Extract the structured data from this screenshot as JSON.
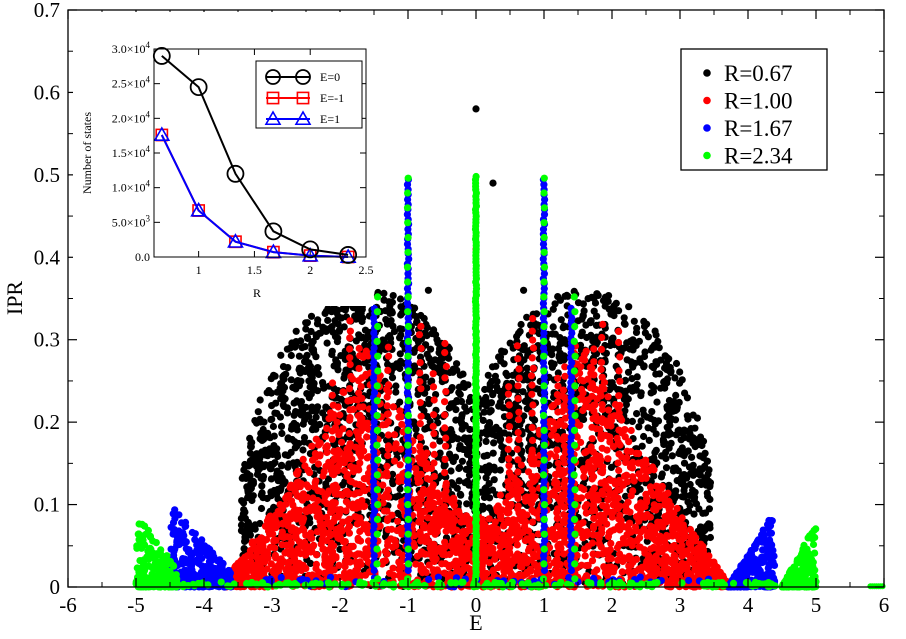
{
  "chart_data": [
    {
      "type": "scatter",
      "xlabel": "E",
      "ylabel": "IPR",
      "xlim": [
        -6,
        6
      ],
      "ylim": [
        0,
        0.7
      ],
      "xticks": [
        -6,
        -5,
        -4,
        -3,
        -2,
        -1,
        0,
        1,
        2,
        3,
        4,
        5,
        6
      ],
      "yticks": [
        0,
        0.1,
        0.2,
        0.3,
        0.4,
        0.5,
        0.6,
        0.7
      ],
      "xtick_labels": [
        "-6",
        "-5",
        "-4",
        "-3",
        "-2",
        "-1",
        "0",
        "1",
        "2",
        "3",
        "4",
        "5",
        "6"
      ],
      "ytick_labels": [
        "0",
        "0.1",
        "0.2",
        "0.3",
        "0.4",
        "0.5",
        "0.6",
        "0.7"
      ],
      "legend_position": "top-right",
      "series": [
        {
          "name": "R=0.67",
          "label": "R=0.67",
          "color": "#000000"
        },
        {
          "name": "R=1.00",
          "label": "R=1.00",
          "color": "#ff0000"
        },
        {
          "name": "R=1.67",
          "label": "R=1.67",
          "color": "#0000ff"
        },
        {
          "name": "R=2.34",
          "label": "R=2.34",
          "color": "#00ff00"
        }
      ]
    },
    {
      "type": "line",
      "inset": true,
      "xlabel": "R",
      "ylabel": "Number of states",
      "xlim": [
        0.6,
        2.5
      ],
      "ylim": [
        0,
        30000
      ],
      "xticks": [
        1,
        1.5,
        2,
        2.5
      ],
      "xtick_labels": [
        "1",
        "1.5",
        "2",
        "2.5"
      ],
      "yticks": [
        0,
        5000,
        10000,
        15000,
        20000,
        25000,
        30000
      ],
      "ytick_labels": [
        {
          "mant": "0.0",
          "exp": ""
        },
        {
          "mant": "5.0×10",
          "exp": "3"
        },
        {
          "mant": "1.0×10",
          "exp": "4"
        },
        {
          "mant": "1.5×10",
          "exp": "4"
        },
        {
          "mant": "2.0×10",
          "exp": "4"
        },
        {
          "mant": "2.5×10",
          "exp": "4"
        },
        {
          "mant": "3.0×10",
          "exp": "4"
        }
      ],
      "x": [
        0.67,
        1.0,
        1.33,
        1.67,
        2.0,
        2.34
      ],
      "series": [
        {
          "name": "E=0",
          "label": "E=0",
          "color": "#000000",
          "marker": "circle",
          "values": [
            29000,
            24500,
            12000,
            3700,
            1100,
            300
          ]
        },
        {
          "name": "E=-1",
          "label": "E=-1",
          "color": "#ff0000",
          "marker": "square",
          "values": [
            17600,
            6700,
            2200,
            700,
            200,
            0
          ]
        },
        {
          "name": "E=1",
          "label": "E=1",
          "color": "#0000ff",
          "marker": "triangle",
          "values": [
            17600,
            6700,
            2200,
            700,
            200,
            0
          ]
        }
      ]
    }
  ]
}
